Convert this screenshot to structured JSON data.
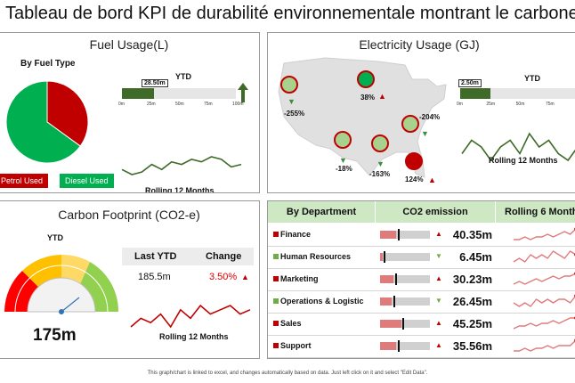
{
  "title": "Tableau de bord KPI de durabilité environnementale montrant le carbone…",
  "fuel": {
    "title": "Fuel Usage(L)",
    "subtitle": "By Fuel Type",
    "pie": [
      {
        "label": "Petrol Used",
        "value": 35,
        "color": "#c00000"
      },
      {
        "label": "Diesel Used",
        "value": 65,
        "color": "#00b050"
      }
    ],
    "ytd_label": "YTD",
    "ytd_value": "28.50m",
    "ytd_fraction": 0.285,
    "ticks": [
      "0m",
      "25m",
      "50m",
      "75m",
      "100m"
    ],
    "rolling_label": "Rolling 12 Months",
    "rolling": [
      6,
      4,
      5,
      8,
      6,
      9,
      8,
      10,
      9,
      11,
      10,
      7,
      8
    ]
  },
  "electricity": {
    "title": "Electricity Usage (GJ)",
    "markers": [
      {
        "label": "-255%",
        "dir": "down",
        "fill": "#a9d18e"
      },
      {
        "label": "38%",
        "dir": "up",
        "fill": "#00b050"
      },
      {
        "label": "-204%",
        "dir": "down",
        "fill": "#a9d18e"
      },
      {
        "label": "-18%",
        "dir": "down",
        "fill": "#a9d18e"
      },
      {
        "label": "-163%",
        "dir": "down",
        "fill": "#a9d18e"
      },
      {
        "label": "124%",
        "dir": "up",
        "fill": "#c00000"
      }
    ],
    "ytd_label": "YTD",
    "ytd_value": "2.50m",
    "ytd_fraction": 0.25,
    "ticks": [
      "0m",
      "25m",
      "50m",
      "75m"
    ],
    "rolling_label": "Rolling 12 Months",
    "rolling": [
      4,
      6,
      5,
      3,
      5,
      6,
      4,
      7,
      5,
      6,
      4,
      3,
      5
    ]
  },
  "carbon": {
    "title": "Carbon Footprint (CO2-e)",
    "gauge_label": "YTD",
    "gauge_value": "175m",
    "last_ytd_label": "Last YTD",
    "change_label": "Change",
    "last_ytd": "185.5m",
    "change": "3.50%",
    "rolling_label": "Rolling 12 Months",
    "rolling": [
      4,
      6,
      5,
      7,
      4,
      8,
      6,
      9,
      7,
      8,
      9,
      7,
      8
    ]
  },
  "department": {
    "headers": [
      "By Department",
      "CO2 emission",
      "Rolling 6 Month"
    ],
    "rows": [
      {
        "name": "Finance",
        "color": "#c00000",
        "fill": 0.33,
        "marker": 0.36,
        "dir": "up",
        "value": "40.35m",
        "trend": [
          3,
          3,
          4,
          3,
          4,
          4,
          5,
          4,
          5,
          6,
          5,
          7
        ]
      },
      {
        "name": "Human Resources",
        "color": "#70ad47",
        "fill": 0.05,
        "marker": 0.07,
        "dir": "down",
        "value": "6.45m",
        "trend": [
          4,
          5,
          4,
          6,
          5,
          6,
          5,
          7,
          6,
          5,
          7,
          6
        ]
      },
      {
        "name": "Marketing",
        "color": "#c00000",
        "fill": 0.27,
        "marker": 0.3,
        "dir": "up",
        "value": "30.23m",
        "trend": [
          3,
          4,
          3,
          4,
          5,
          4,
          5,
          6,
          5,
          6,
          6,
          7
        ]
      },
      {
        "name": "Operations & Logistic",
        "color": "#70ad47",
        "fill": 0.24,
        "marker": 0.27,
        "dir": "down",
        "value": "26.45m",
        "trend": [
          5,
          4,
          5,
          4,
          6,
          5,
          6,
          5,
          6,
          6,
          5,
          7
        ]
      },
      {
        "name": "Sales",
        "color": "#c00000",
        "fill": 0.42,
        "marker": 0.45,
        "dir": "up",
        "value": "45.25m",
        "trend": [
          3,
          4,
          4,
          5,
          4,
          5,
          5,
          6,
          5,
          6,
          7,
          7
        ]
      },
      {
        "name": "Support",
        "color": "#c00000",
        "fill": 0.33,
        "marker": 0.36,
        "dir": "up",
        "value": "35.56m",
        "trend": [
          4,
          4,
          5,
          4,
          5,
          5,
          6,
          5,
          6,
          6,
          6,
          8
        ]
      }
    ]
  },
  "footer": "This graph/chart is linked to excel, and changes automatically based on data. Just left click on it and select \"Edit Data\"."
}
